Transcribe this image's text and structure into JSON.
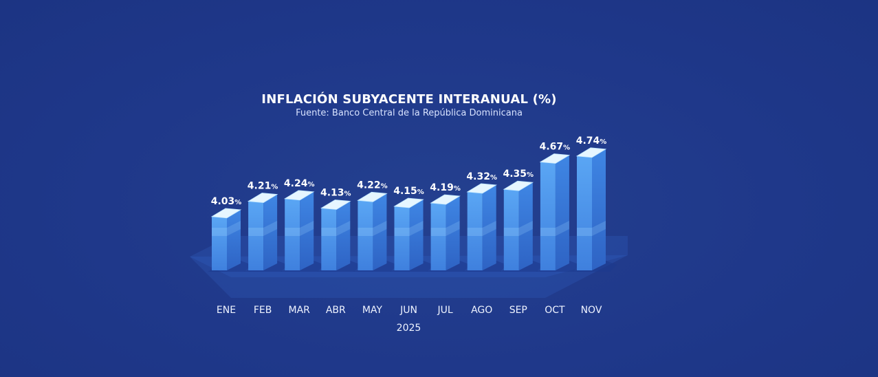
{
  "chart_data": {
    "type": "bar",
    "title": "INFLACIÓN SUBYACENTE INTERANUAL (%)",
    "subtitle": "Fuente: Banco Central de la República Dominicana",
    "categories": [
      "ENE",
      "FEB",
      "MAR",
      "ABR",
      "MAY",
      "JUN",
      "JUL",
      "AGO",
      "SEP",
      "OCT",
      "NOV"
    ],
    "values": [
      4.03,
      4.21,
      4.24,
      4.13,
      4.22,
      4.15,
      4.19,
      4.32,
      4.35,
      4.67,
      4.74
    ],
    "value_labels": [
      "4.03",
      "4.21",
      "4.24",
      "4.13",
      "4.22",
      "4.15",
      "4.19",
      "4.32",
      "4.35",
      "4.67",
      "4.74"
    ],
    "value_suffix": "%",
    "xlabel": "2025",
    "ylabel": "",
    "grid": false,
    "legend": "none",
    "style": "3d-isometric-bars",
    "colors": {
      "background": "#1f3a8a",
      "bar_front": "#4b8fe6",
      "bar_side": "#3a6fd0",
      "bar_top": "#e6f6ff",
      "floor": "#2a4fa8",
      "text": "#ffffff"
    }
  }
}
